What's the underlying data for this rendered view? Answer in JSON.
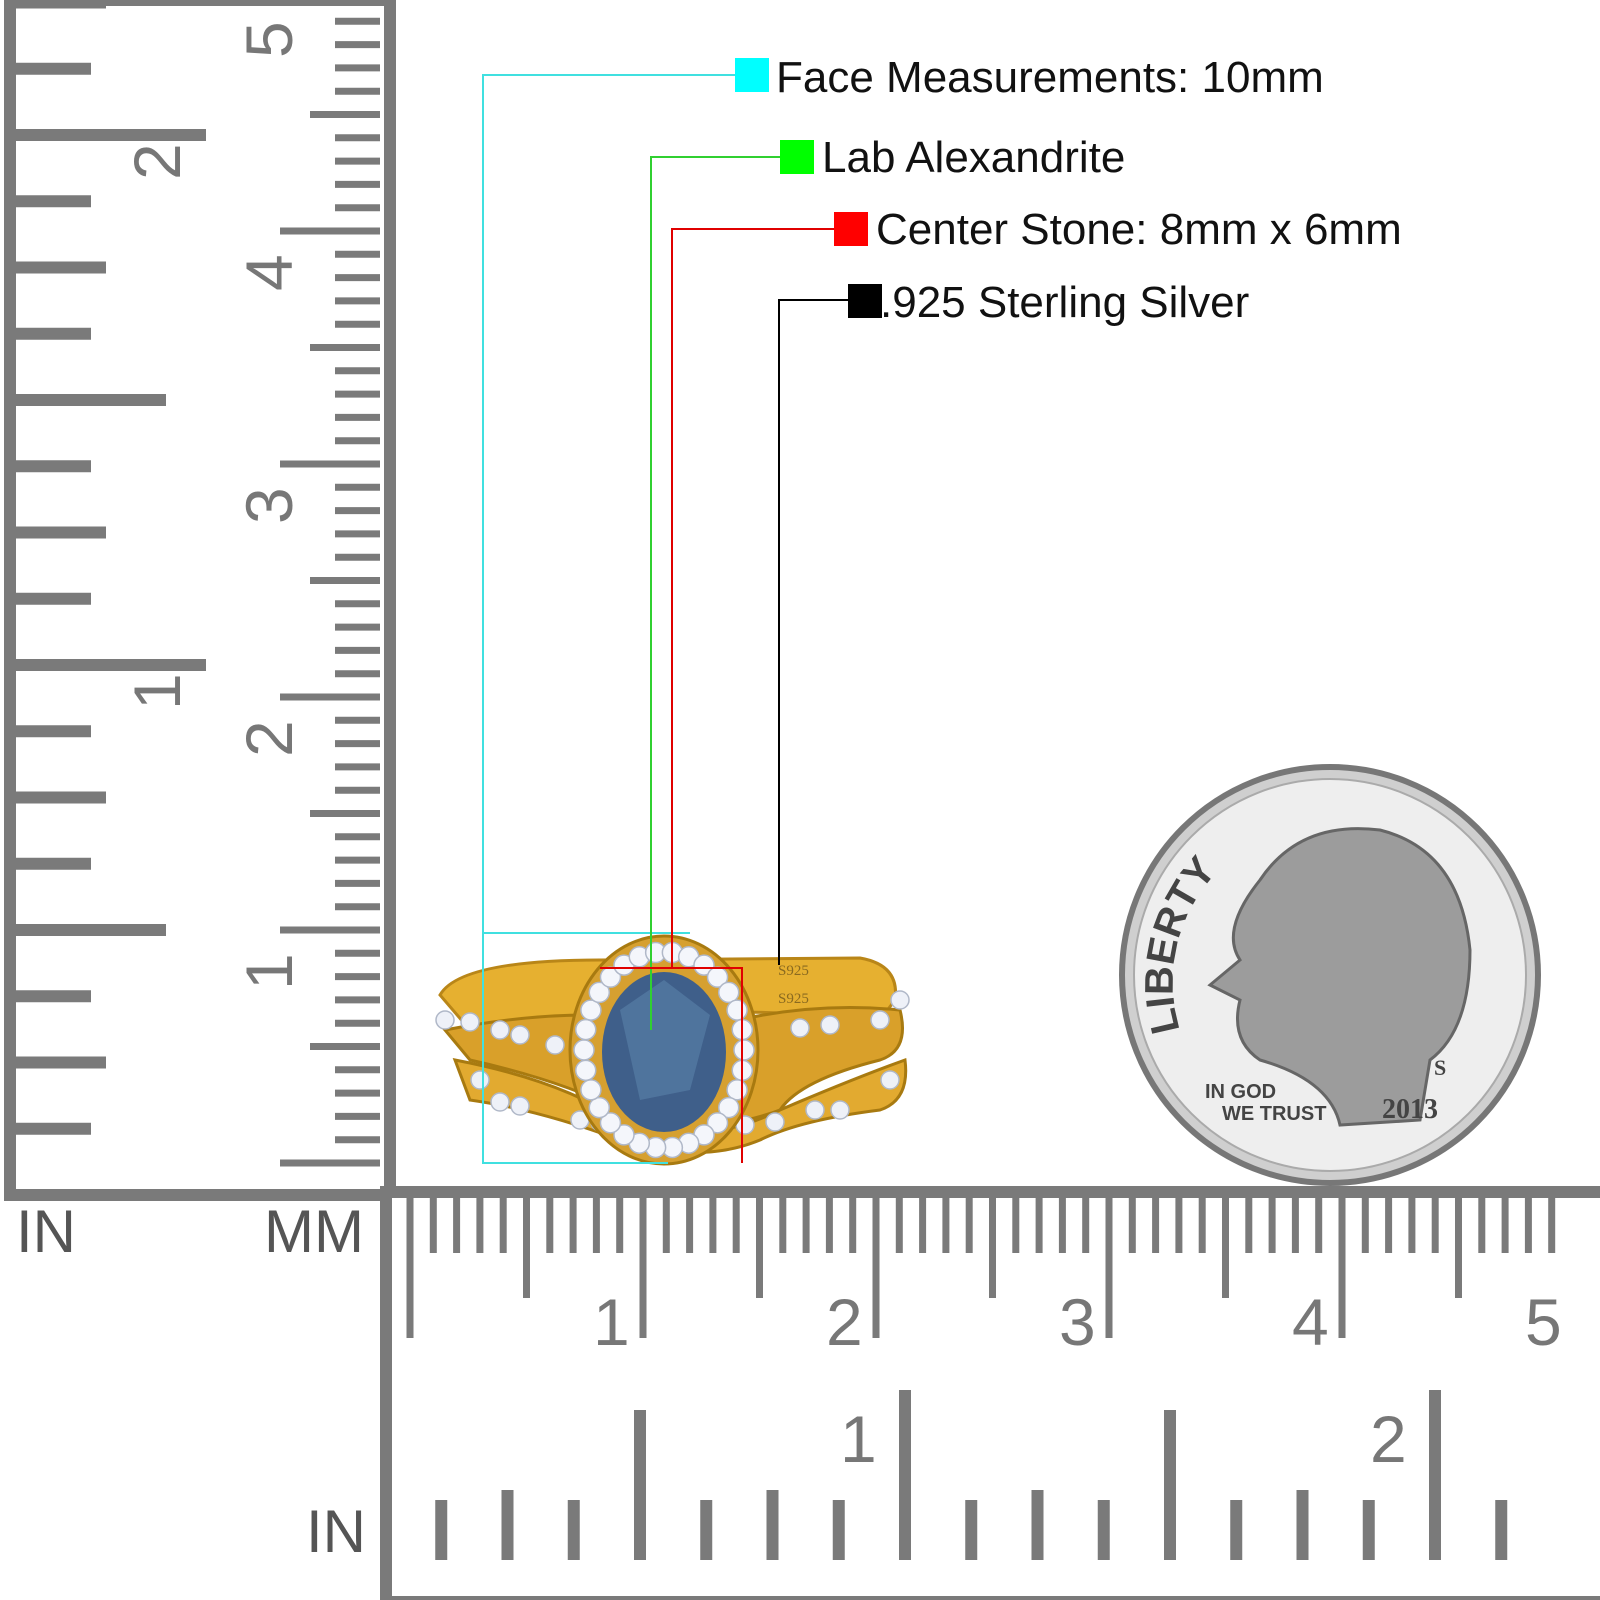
{
  "callouts": [
    {
      "text": "Face Measurements: 10mm",
      "color": "#00ffff",
      "line_color": "#40e0e0"
    },
    {
      "text": "Lab Alexandrite",
      "color": "#00ff00",
      "line_color": "#30d030"
    },
    {
      "text": "Center Stone: 8mm x 6mm",
      "color": "#ff0000",
      "line_color": "#e00000"
    },
    {
      "text": ".925 Sterling Silver",
      "color": "#000000",
      "line_color": "#000000"
    }
  ],
  "rulers": {
    "left_unit": "IN",
    "corner_unit": "MM",
    "bottom_unit": "IN",
    "vertical_inch_labels": [
      "1",
      "2"
    ],
    "vertical_cm_labels": [
      "1",
      "2",
      "3",
      "4",
      "5"
    ],
    "horizontal_cm_labels": [
      "1",
      "2",
      "3",
      "4",
      "5"
    ],
    "horizontal_inch_labels": [
      "1",
      "2"
    ],
    "color": "#7a7a7a"
  },
  "ring": {
    "stamp": "S925",
    "metal_color": "#e0a828",
    "stone_color": "#3f5f8a"
  },
  "coin": {
    "legend": "LIBERTY",
    "motto_1": "IN GOD",
    "motto_2": "WE TRUST",
    "year": "2013",
    "mint": "S"
  }
}
